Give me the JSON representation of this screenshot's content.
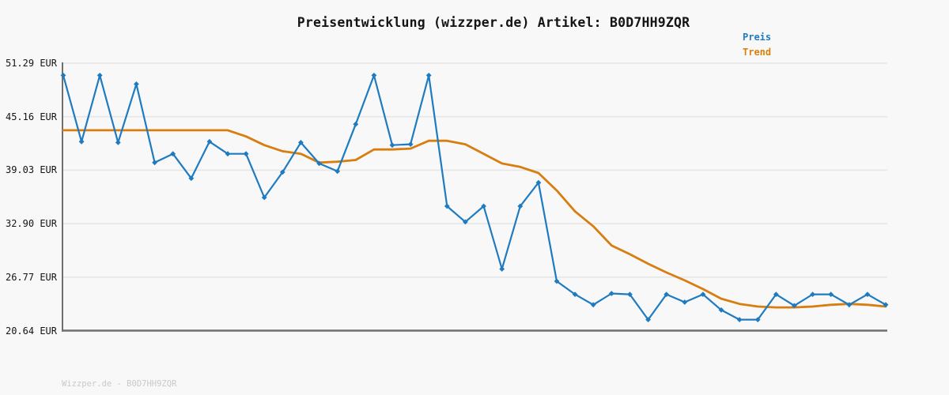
{
  "title": "Preisentwicklung (wizzper.de) Artikel: B0D7HH9ZQR",
  "legend": {
    "position": "top-right",
    "items": [
      {
        "label": "Preis",
        "color": "#1f7bc0"
      },
      {
        "label": "Trend",
        "color": "#d8820a"
      }
    ]
  },
  "footer": {
    "text": "Wizzper.de - B0D7HH9ZQR"
  },
  "colors": {
    "background": "#f8f8f8",
    "grid": "#e6e6e6",
    "axis": "#6f6f6f",
    "price": "#1f7bc0",
    "trend": "#d87d10",
    "title_text": "#141414",
    "tick_text": "#141414",
    "footer_text": "#c9c9c9"
  },
  "chart_data": {
    "type": "line",
    "title": "Preisentwicklung (wizzper.de) Artikel: B0D7HH9ZQR",
    "xlabel": "",
    "ylabel": "EUR",
    "x_axis_labels": "none",
    "grid": true,
    "legend_position": "top-right",
    "ylim": [
      20.64,
      51.29
    ],
    "yticks": [
      {
        "label": "51.29 EUR",
        "value": 51.29
      },
      {
        "label": "45.16 EUR",
        "value": 45.16
      },
      {
        "label": "39.03 EUR",
        "value": 39.03
      },
      {
        "label": "32.90 EUR",
        "value": 32.9
      },
      {
        "label": "26.77 EUR",
        "value": 26.77
      },
      {
        "label": "20.64 EUR",
        "value": 20.64
      }
    ],
    "series": [
      {
        "name": "Preis",
        "color": "#1f7bc0",
        "marker": "diamond",
        "values": [
          49.9,
          42.3,
          49.9,
          42.2,
          48.9,
          39.9,
          40.9,
          38.1,
          42.3,
          40.9,
          40.9,
          35.9,
          38.8,
          42.2,
          39.8,
          38.9,
          44.3,
          49.9,
          41.9,
          42.0,
          49.9,
          34.9,
          33.1,
          34.9,
          27.7,
          34.9,
          37.6,
          26.3,
          24.8,
          23.6,
          24.9,
          24.8,
          21.9,
          24.8,
          23.9,
          24.8,
          23.0,
          21.9,
          21.9,
          24.8,
          23.5,
          24.8,
          24.8,
          23.6,
          24.8,
          23.6
        ]
      },
      {
        "name": "Trend",
        "color": "#d87d10",
        "marker": "none",
        "values": [
          43.6,
          43.6,
          43.6,
          43.6,
          43.6,
          43.6,
          43.6,
          43.6,
          43.6,
          43.6,
          42.9,
          41.9,
          41.2,
          40.9,
          39.9,
          40.0,
          40.2,
          41.4,
          41.4,
          41.5,
          42.4,
          42.4,
          42.0,
          40.9,
          39.8,
          39.4,
          38.7,
          36.7,
          34.3,
          32.6,
          30.4,
          29.4,
          28.3,
          27.3,
          26.4,
          25.4,
          24.3,
          23.7,
          23.4,
          23.3,
          23.3,
          23.4,
          23.6,
          23.7,
          23.6,
          23.4
        ]
      }
    ]
  }
}
